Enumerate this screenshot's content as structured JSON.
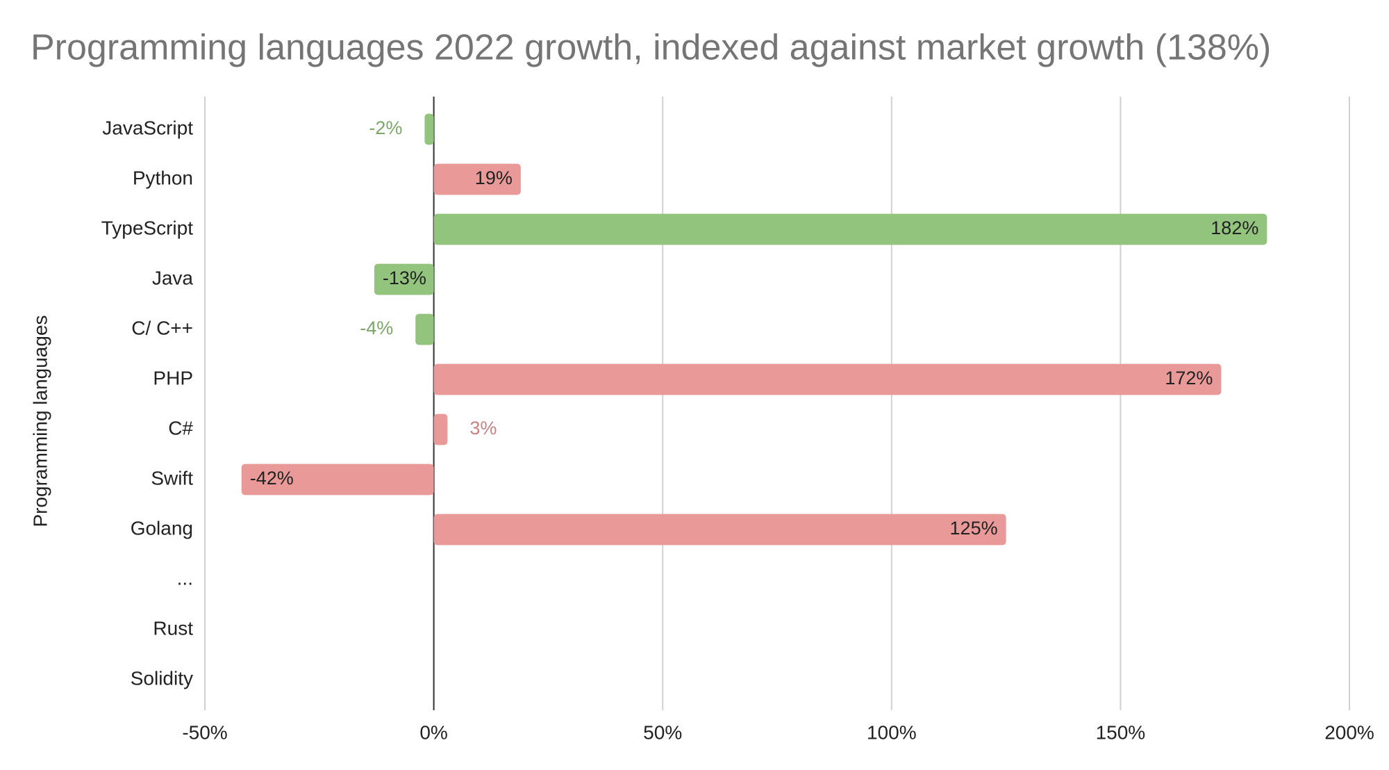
{
  "chart_data": {
    "type": "bar",
    "orientation": "horizontal",
    "title": "Programming languages 2022 growth, indexed against market growth (138%)",
    "y_label": "Programming languages",
    "categories": [
      "JavaScript",
      "Python",
      "TypeScript",
      "Java",
      "C/ C++",
      "PHP",
      "C#",
      "Swift",
      "Golang",
      "...",
      "Rust",
      "Solidity"
    ],
    "values": [
      -2,
      19,
      182,
      -13,
      -4,
      172,
      3,
      -42,
      125,
      null,
      null,
      null
    ],
    "value_labels": [
      "-2%",
      "19%",
      "182%",
      "-13%",
      "-4%",
      "172%",
      "3%",
      "-42%",
      "125%",
      null,
      null,
      null
    ],
    "colors": [
      "#93c47d",
      "#ea9999",
      "#93c47d",
      "#93c47d",
      "#93c47d",
      "#ea9999",
      "#ea9999",
      "#ea9999",
      "#ea9999",
      null,
      null,
      null
    ],
    "xlim": [
      -50,
      200
    ],
    "xticks": [
      {
        "value": -50,
        "label": "-50%"
      },
      {
        "value": 0,
        "label": "0%"
      },
      {
        "value": 50,
        "label": "50%"
      },
      {
        "value": 100,
        "label": "100%"
      },
      {
        "value": 150,
        "label": "150%"
      },
      {
        "value": 200,
        "label": "200%"
      }
    ],
    "grid": true
  }
}
